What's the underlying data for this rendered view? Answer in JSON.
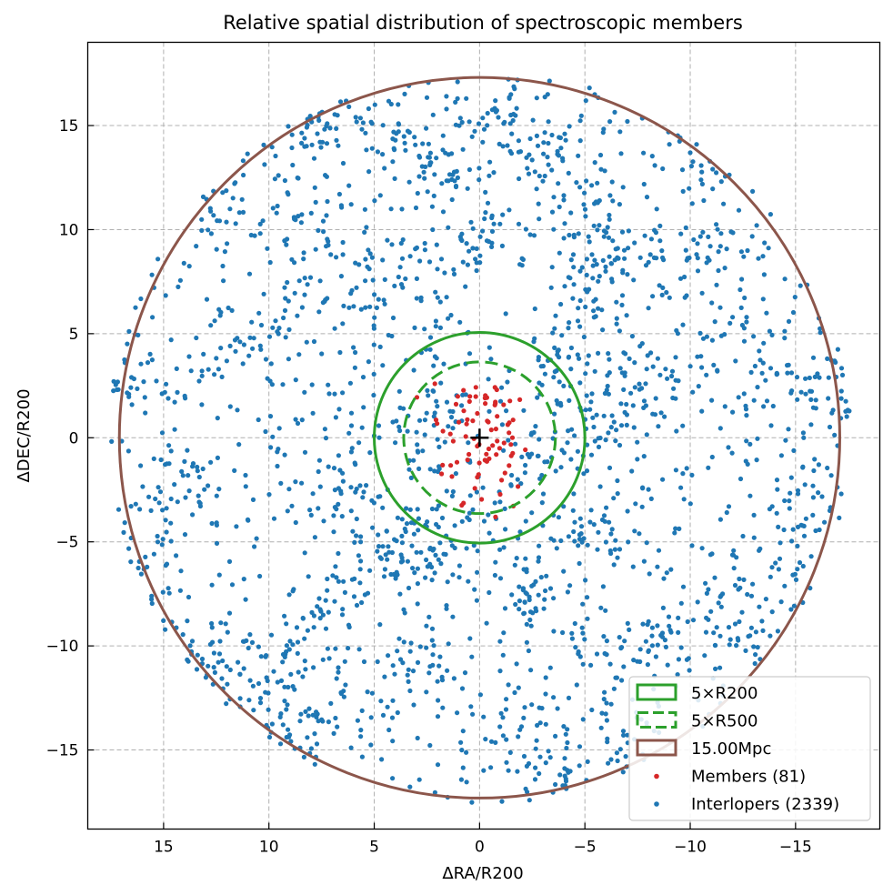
{
  "chart_data": {
    "type": "scatter",
    "title": "Relative spatial distribution of spectroscopic members",
    "xlabel": "ΔRA/R200",
    "ylabel": "ΔDEC/R200",
    "xlim": [
      18.6,
      -19.0
    ],
    "ylim": [
      -18.8,
      19.0
    ],
    "x_ticks": [
      15,
      10,
      5,
      0,
      -5,
      -10,
      -15
    ],
    "y_ticks": [
      15,
      10,
      5,
      0,
      -5,
      -10,
      -15
    ],
    "x_tick_labels": [
      "15",
      "10",
      "5",
      "0",
      "−5",
      "−10",
      "−15"
    ],
    "y_tick_labels": [
      "15",
      "10",
      "5",
      "0",
      "−5",
      "−10",
      "−15"
    ],
    "grid": true,
    "center_marker": {
      "x": 0,
      "y": 0,
      "symbol": "+"
    },
    "circles": [
      {
        "label": "5×R200",
        "radius": 5.0,
        "style": "solid",
        "color": "#2ca02c"
      },
      {
        "label": "5×R500",
        "radius": 3.6,
        "style": "dashed",
        "color": "#2ca02c"
      },
      {
        "label": "15.00Mpc",
        "radius": 17.1,
        "style": "solid",
        "color": "#8c564b"
      }
    ],
    "series": [
      {
        "name": "Members (81)",
        "color": "#d62728",
        "count": 81,
        "radial_extent": 4.5
      },
      {
        "name": "Interlopers (2339)",
        "color": "#1f77b4",
        "count": 2339,
        "radial_extent": 17.6
      }
    ],
    "legend_position": "lower-right",
    "interloper_clumps": [
      [
        3.8,
        14.5
      ],
      [
        7.5,
        15.3
      ],
      [
        -1.2,
        15.5
      ],
      [
        -3.5,
        13.8
      ],
      [
        2.0,
        12.8
      ],
      [
        -0.5,
        9.8
      ],
      [
        -4.5,
        11.5
      ],
      [
        5.0,
        7.8
      ],
      [
        -5.3,
        7.0
      ],
      [
        -5.8,
        8.5
      ],
      [
        -10.5,
        9.0
      ],
      [
        -12.0,
        5.5
      ],
      [
        10.8,
        5.0
      ],
      [
        3.5,
        4.0
      ],
      [
        -3.8,
        3.0
      ],
      [
        -5.5,
        1.0
      ],
      [
        2.0,
        0.0
      ],
      [
        -3.0,
        -1.0
      ],
      [
        -14.0,
        3.0
      ],
      [
        15.0,
        2.5
      ],
      [
        -17.0,
        1.8
      ],
      [
        2.5,
        -4.5
      ],
      [
        4.0,
        -5.8
      ],
      [
        0.8,
        -5.0
      ],
      [
        -5.0,
        -4.5
      ],
      [
        -2.5,
        -7.5
      ],
      [
        7.0,
        -8.0
      ],
      [
        12.5,
        -10.5
      ],
      [
        13.7,
        -10.8
      ],
      [
        9.5,
        -11.5
      ],
      [
        9.0,
        -14.0
      ],
      [
        7.5,
        -13.5
      ],
      [
        4.0,
        -10.0
      ],
      [
        -2.5,
        -14.2
      ],
      [
        -4.0,
        -16.5
      ],
      [
        -7.0,
        -14.0
      ],
      [
        -9.0,
        -10.0
      ],
      [
        -12.0,
        -9.0
      ],
      [
        -14.5,
        -5.5
      ],
      [
        16.0,
        -6.0
      ],
      [
        -6.0,
        -11.0
      ],
      [
        1.5,
        -12.0
      ],
      [
        -10.0,
        13.0
      ],
      [
        12.0,
        12.0
      ],
      [
        9.0,
        10.5
      ],
      [
        2.0,
        8.5
      ],
      [
        -8.0,
        3.0
      ],
      [
        6.0,
        -2.5
      ],
      [
        -16.0,
        -3.0
      ],
      [
        14.0,
        -2.0
      ]
    ]
  }
}
